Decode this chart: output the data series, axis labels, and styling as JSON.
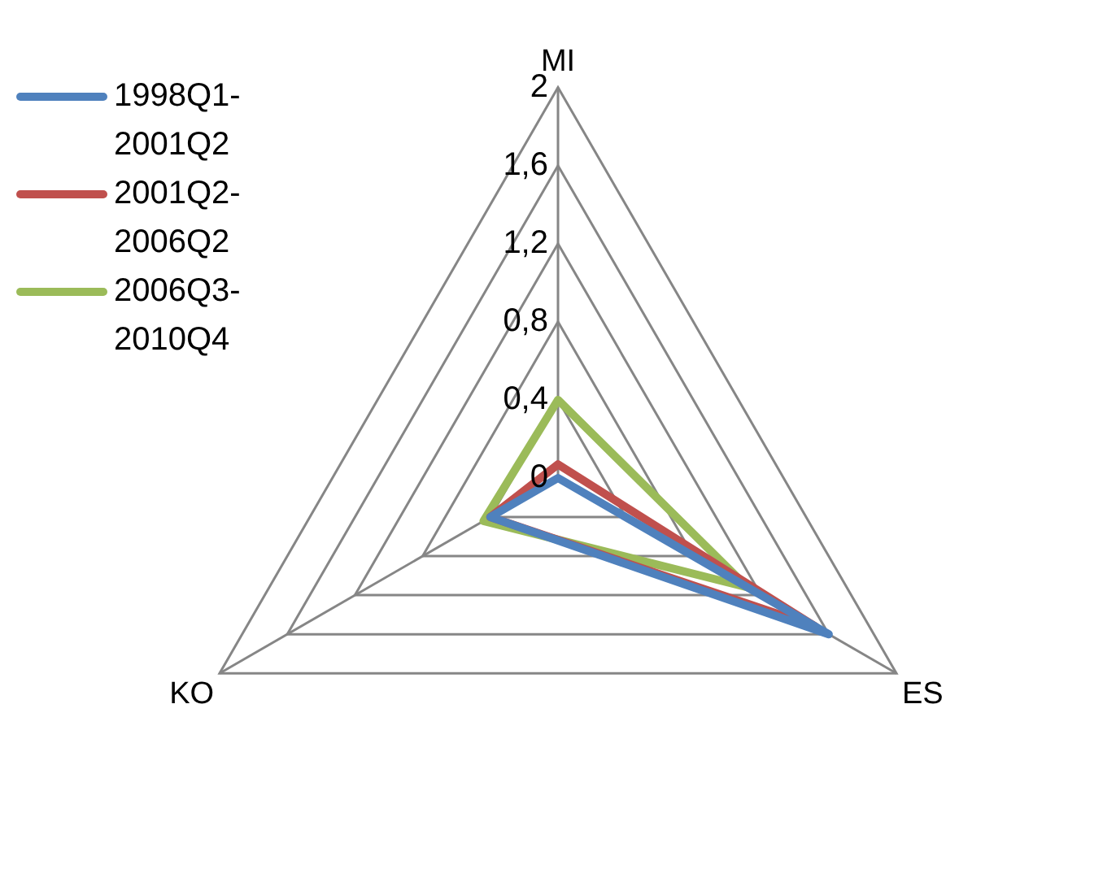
{
  "chart_data": {
    "type": "radar",
    "categories": [
      "MI",
      "ES",
      "KO"
    ],
    "series": [
      {
        "name": "1998Q1-2001Q2",
        "color": "#4f81bd",
        "values": [
          0,
          1.6,
          0.4
        ]
      },
      {
        "name": "2001Q2-2006Q2",
        "color": "#c0504d",
        "values": [
          0.07,
          1.52,
          0.4
        ]
      },
      {
        "name": "2006Q3-2010Q4",
        "color": "#9bbb59",
        "values": [
          0.4,
          1.12,
          0.44
        ]
      }
    ],
    "ylim": [
      0,
      2
    ],
    "yticks": [
      0,
      {
        "value": 0.4,
        "label": "0,4"
      },
      {
        "value": 0.8,
        "label": "0,8"
      },
      {
        "value": 1.2,
        "label": "1,2"
      },
      {
        "value": 1.6,
        "label": "1,6"
      },
      2
    ],
    "legend": "top left",
    "grid": true,
    "marker": "none"
  }
}
